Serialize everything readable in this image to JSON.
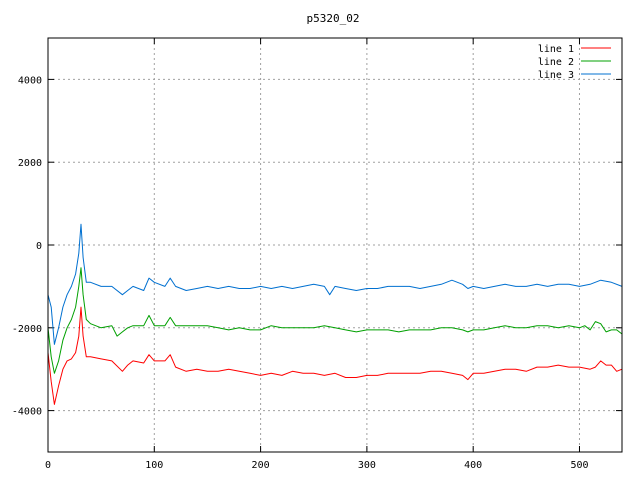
{
  "chart_data": {
    "type": "line",
    "title": "p5320_02",
    "xlabel": "",
    "ylabel": "",
    "xlim": [
      0,
      540
    ],
    "ylim": [
      -5000,
      5000
    ],
    "xticks": [
      0,
      100,
      200,
      300,
      400,
      500
    ],
    "yticks": [
      -4000,
      -2000,
      0,
      2000,
      4000
    ],
    "grid": true,
    "legend_position": "top-right",
    "series": [
      {
        "name": "line 1",
        "color": "#ff0000",
        "points": [
          [
            0,
            -2600
          ],
          [
            3,
            -3300
          ],
          [
            6,
            -3850
          ],
          [
            10,
            -3400
          ],
          [
            14,
            -3000
          ],
          [
            18,
            -2800
          ],
          [
            22,
            -2750
          ],
          [
            26,
            -2600
          ],
          [
            29,
            -2200
          ],
          [
            31,
            -1500
          ],
          [
            33,
            -2200
          ],
          [
            36,
            -2700
          ],
          [
            40,
            -2700
          ],
          [
            50,
            -2750
          ],
          [
            60,
            -2800
          ],
          [
            70,
            -3050
          ],
          [
            75,
            -2900
          ],
          [
            80,
            -2800
          ],
          [
            90,
            -2850
          ],
          [
            95,
            -2650
          ],
          [
            100,
            -2800
          ],
          [
            110,
            -2800
          ],
          [
            115,
            -2650
          ],
          [
            120,
            -2950
          ],
          [
            130,
            -3050
          ],
          [
            140,
            -3000
          ],
          [
            150,
            -3050
          ],
          [
            160,
            -3050
          ],
          [
            170,
            -3000
          ],
          [
            180,
            -3050
          ],
          [
            190,
            -3100
          ],
          [
            200,
            -3150
          ],
          [
            210,
            -3100
          ],
          [
            220,
            -3150
          ],
          [
            230,
            -3050
          ],
          [
            240,
            -3100
          ],
          [
            250,
            -3100
          ],
          [
            260,
            -3150
          ],
          [
            270,
            -3100
          ],
          [
            280,
            -3200
          ],
          [
            290,
            -3200
          ],
          [
            300,
            -3150
          ],
          [
            310,
            -3150
          ],
          [
            320,
            -3100
          ],
          [
            330,
            -3100
          ],
          [
            340,
            -3100
          ],
          [
            350,
            -3100
          ],
          [
            360,
            -3050
          ],
          [
            370,
            -3050
          ],
          [
            380,
            -3100
          ],
          [
            390,
            -3150
          ],
          [
            395,
            -3250
          ],
          [
            400,
            -3100
          ],
          [
            410,
            -3100
          ],
          [
            420,
            -3050
          ],
          [
            430,
            -3000
          ],
          [
            440,
            -3000
          ],
          [
            450,
            -3050
          ],
          [
            460,
            -2950
          ],
          [
            470,
            -2950
          ],
          [
            480,
            -2900
          ],
          [
            490,
            -2950
          ],
          [
            500,
            -2950
          ],
          [
            510,
            -3000
          ],
          [
            515,
            -2950
          ],
          [
            520,
            -2800
          ],
          [
            525,
            -2900
          ],
          [
            530,
            -2900
          ],
          [
            535,
            -3050
          ],
          [
            540,
            -3000
          ]
        ]
      },
      {
        "name": "line 2",
        "color": "#00a000",
        "points": [
          [
            0,
            -2000
          ],
          [
            3,
            -2700
          ],
          [
            6,
            -3100
          ],
          [
            10,
            -2800
          ],
          [
            14,
            -2300
          ],
          [
            18,
            -2000
          ],
          [
            22,
            -1800
          ],
          [
            26,
            -1500
          ],
          [
            29,
            -1000
          ],
          [
            31,
            -550
          ],
          [
            33,
            -1200
          ],
          [
            36,
            -1800
          ],
          [
            40,
            -1900
          ],
          [
            50,
            -2000
          ],
          [
            60,
            -1950
          ],
          [
            65,
            -2200
          ],
          [
            70,
            -2100
          ],
          [
            75,
            -2000
          ],
          [
            80,
            -1950
          ],
          [
            90,
            -1950
          ],
          [
            95,
            -1700
          ],
          [
            100,
            -1950
          ],
          [
            110,
            -1950
          ],
          [
            115,
            -1750
          ],
          [
            120,
            -1950
          ],
          [
            130,
            -1950
          ],
          [
            140,
            -1950
          ],
          [
            150,
            -1950
          ],
          [
            160,
            -2000
          ],
          [
            170,
            -2050
          ],
          [
            180,
            -2000
          ],
          [
            190,
            -2050
          ],
          [
            200,
            -2050
          ],
          [
            210,
            -1950
          ],
          [
            220,
            -2000
          ],
          [
            230,
            -2000
          ],
          [
            240,
            -2000
          ],
          [
            250,
            -2000
          ],
          [
            260,
            -1950
          ],
          [
            270,
            -2000
          ],
          [
            280,
            -2050
          ],
          [
            290,
            -2100
          ],
          [
            300,
            -2050
          ],
          [
            310,
            -2050
          ],
          [
            320,
            -2050
          ],
          [
            330,
            -2100
          ],
          [
            340,
            -2050
          ],
          [
            350,
            -2050
          ],
          [
            360,
            -2050
          ],
          [
            370,
            -2000
          ],
          [
            380,
            -2000
          ],
          [
            390,
            -2050
          ],
          [
            395,
            -2100
          ],
          [
            400,
            -2050
          ],
          [
            410,
            -2050
          ],
          [
            420,
            -2000
          ],
          [
            430,
            -1950
          ],
          [
            440,
            -2000
          ],
          [
            450,
            -2000
          ],
          [
            460,
            -1950
          ],
          [
            470,
            -1950
          ],
          [
            480,
            -2000
          ],
          [
            490,
            -1950
          ],
          [
            500,
            -2000
          ],
          [
            505,
            -1950
          ],
          [
            510,
            -2050
          ],
          [
            515,
            -1850
          ],
          [
            520,
            -1900
          ],
          [
            525,
            -2100
          ],
          [
            530,
            -2050
          ],
          [
            535,
            -2050
          ],
          [
            540,
            -2150
          ]
        ]
      },
      {
        "name": "line 3",
        "color": "#0070d0",
        "points": [
          [
            0,
            -1200
          ],
          [
            3,
            -1500
          ],
          [
            6,
            -2400
          ],
          [
            10,
            -2000
          ],
          [
            14,
            -1500
          ],
          [
            18,
            -1200
          ],
          [
            22,
            -1000
          ],
          [
            26,
            -700
          ],
          [
            29,
            -200
          ],
          [
            31,
            500
          ],
          [
            33,
            -300
          ],
          [
            36,
            -900
          ],
          [
            40,
            -900
          ],
          [
            50,
            -1000
          ],
          [
            60,
            -1000
          ],
          [
            70,
            -1200
          ],
          [
            75,
            -1100
          ],
          [
            80,
            -1000
          ],
          [
            90,
            -1100
          ],
          [
            95,
            -800
          ],
          [
            100,
            -900
          ],
          [
            110,
            -1000
          ],
          [
            115,
            -800
          ],
          [
            120,
            -1000
          ],
          [
            130,
            -1100
          ],
          [
            140,
            -1050
          ],
          [
            150,
            -1000
          ],
          [
            160,
            -1050
          ],
          [
            170,
            -1000
          ],
          [
            180,
            -1050
          ],
          [
            190,
            -1050
          ],
          [
            200,
            -1000
          ],
          [
            210,
            -1050
          ],
          [
            220,
            -1000
          ],
          [
            230,
            -1050
          ],
          [
            240,
            -1000
          ],
          [
            250,
            -950
          ],
          [
            260,
            -1000
          ],
          [
            265,
            -1200
          ],
          [
            270,
            -1000
          ],
          [
            280,
            -1050
          ],
          [
            290,
            -1100
          ],
          [
            300,
            -1050
          ],
          [
            310,
            -1050
          ],
          [
            320,
            -1000
          ],
          [
            330,
            -1000
          ],
          [
            340,
            -1000
          ],
          [
            350,
            -1050
          ],
          [
            360,
            -1000
          ],
          [
            370,
            -950
          ],
          [
            380,
            -850
          ],
          [
            390,
            -950
          ],
          [
            395,
            -1050
          ],
          [
            400,
            -1000
          ],
          [
            410,
            -1050
          ],
          [
            420,
            -1000
          ],
          [
            430,
            -950
          ],
          [
            440,
            -1000
          ],
          [
            450,
            -1000
          ],
          [
            460,
            -950
          ],
          [
            470,
            -1000
          ],
          [
            480,
            -950
          ],
          [
            490,
            -950
          ],
          [
            500,
            -1000
          ],
          [
            510,
            -950
          ],
          [
            520,
            -850
          ],
          [
            530,
            -900
          ],
          [
            540,
            -1000
          ]
        ]
      }
    ]
  }
}
